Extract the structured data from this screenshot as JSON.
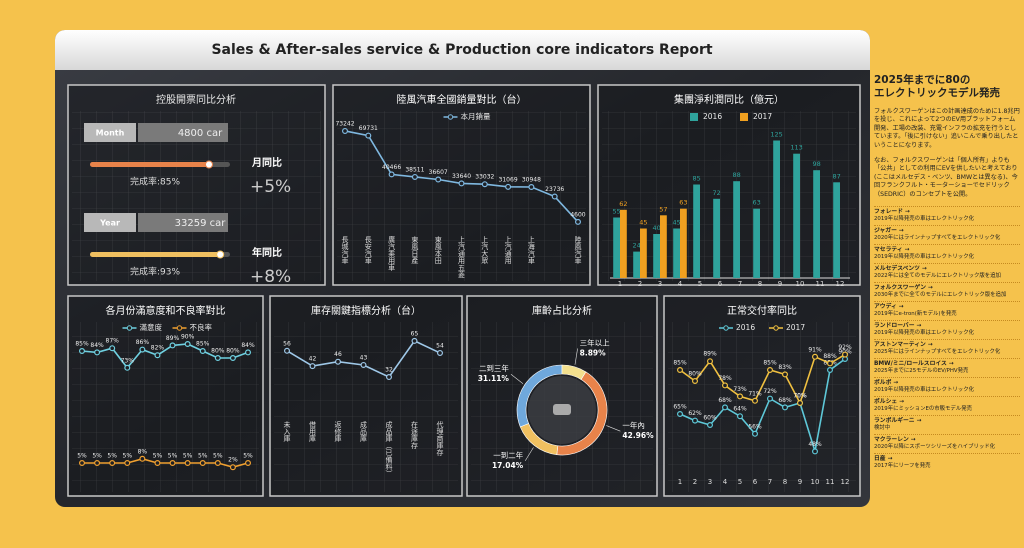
{
  "header": {
    "title": "Sales & After-sales service & Production core indicators Report"
  },
  "kpi": {
    "title": "控股開票同比分析",
    "rows": [
      {
        "period": "Month",
        "amount": "4800 car",
        "rate": 85,
        "rate_label": "完成率:85%",
        "change_label": "月同比",
        "change": "+5%",
        "color": "#e8834a"
      },
      {
        "period": "Year",
        "amount": "33259 car",
        "rate": 93,
        "rate_label": "完成率:93%",
        "change_label": "年同比",
        "change": "+8%",
        "color": "#f0c060"
      }
    ]
  },
  "chart_data": [
    {
      "type": "line",
      "title": "陸風汽車全國銷量對比（台）",
      "categories": [
        "長城汽車",
        "長安汽車",
        "廣汽乘用車",
        "東風日產",
        "東風本田",
        "上汽通用五菱",
        "上汽大眾",
        "上汽通用",
        "上海汽車",
        null,
        "陸風汽車"
      ],
      "series": [
        {
          "name": "本月銷量",
          "color": "#7fb8e0",
          "values": [
            73242,
            69731,
            40466,
            38511,
            36607,
            33640,
            33032,
            31069,
            30948,
            23736,
            4600
          ]
        }
      ],
      "ylim": [
        0,
        80000
      ]
    },
    {
      "type": "bar",
      "title": "集團淨利潤同比（億元）",
      "categories": [
        "1",
        "2",
        "3",
        "4",
        "5",
        "6",
        "7",
        "8",
        "9",
        "10",
        "11",
        "12"
      ],
      "series": [
        {
          "name": "2016",
          "color": "#2fa39c",
          "values": [
            55,
            24,
            40,
            45,
            85,
            72,
            88,
            63,
            125,
            113,
            98,
            87
          ]
        },
        {
          "name": "2017",
          "color": "#f0a020",
          "values": [
            62,
            45,
            57,
            63,
            null,
            null,
            null,
            null,
            null,
            null,
            null,
            null
          ]
        }
      ],
      "ylim": [
        0,
        130
      ]
    },
    {
      "type": "line",
      "title": "各月份滿意度和不良率對比",
      "series": [
        {
          "name": "滿意度",
          "color": "#6fd0e0",
          "values": [
            85,
            84,
            87,
            73,
            86,
            82,
            89,
            90,
            85,
            80,
            80,
            84
          ],
          "value_labels": [
            "85%",
            "84%",
            "87%",
            "73%",
            "86%",
            "82%",
            "89%",
            "90%",
            "85%",
            "80%",
            "80%",
            "84%"
          ]
        },
        {
          "name": "不良率",
          "color": "#f0a030",
          "values": [
            5,
            5,
            5,
            5,
            8,
            5,
            5,
            5,
            5,
            5,
            2,
            5
          ],
          "value_labels": [
            "5%",
            "5%",
            "5%",
            "5%",
            "8%",
            "5%",
            "5%",
            "5%",
            "5%",
            "5%",
            "2%",
            "5%"
          ]
        }
      ],
      "ylim": [
        0,
        100
      ]
    },
    {
      "type": "line",
      "title": "庫存關鍵指標分析（台）",
      "categories": [
        "未入庫",
        "借用庫",
        "返修庫",
        "成品庫",
        "成品庫（已備料）",
        "在途庫存",
        "代理商庫存"
      ],
      "values": [
        56,
        42,
        46,
        43,
        32,
        65,
        54
      ],
      "color": "#9fc8e8",
      "ylim": [
        0,
        75
      ]
    },
    {
      "type": "pie",
      "title": "庫齡占比分析",
      "categories": [
        "一年內",
        "一到二年",
        "二到三年",
        "三年以上"
      ],
      "values": [
        42.96,
        17.04,
        31.11,
        8.89
      ],
      "value_labels": [
        "42.96%",
        "17.04%",
        "31.11%",
        "8.89%"
      ],
      "colors": [
        "#e8834a",
        "#f0c060",
        "#6fa8dc",
        "#f3e08e"
      ]
    },
    {
      "type": "line",
      "title": "正常交付率同比",
      "categories": [
        "1",
        "2",
        "3",
        "4",
        "5",
        "6",
        "7",
        "8",
        "9",
        "10",
        "11",
        "12"
      ],
      "series": [
        {
          "name": "2016",
          "color": "#5ec8d8",
          "values": [
            65,
            62,
            60,
            68,
            64,
            56,
            72,
            68,
            70,
            48,
            85,
            90
          ],
          "value_labels": [
            "65%",
            "62%",
            "60%",
            "68%",
            "64%",
            "56%",
            "72%",
            "68%",
            "70%",
            "48%",
            "85%",
            "90%"
          ]
        },
        {
          "name": "2017",
          "color": "#f0c040",
          "values": [
            85,
            80,
            89,
            78,
            73,
            71,
            85,
            83,
            70,
            91,
            88,
            92
          ],
          "value_labels": [
            "85%",
            "80%",
            "89%",
            "78%",
            "73%",
            "71%",
            "85%",
            "83%",
            "70%",
            "91%",
            "88%",
            "92%"
          ]
        }
      ],
      "ylim": [
        40,
        100
      ]
    }
  ],
  "side": {
    "title": "2025年までに80の\nエレクトリックモデル発売",
    "paragraphs": [
      "フォルクスワーゲンはこの計画達成のために1.8兆円を投じ、これによって2つのEV用プラットフォーム開発、工場の改装、充電インフラの拡充を行うとしています。「後に引けない」追いこんで乗り出したということになります。",
      "なお、フォルクスワーゲンは「個人所有」よりも「公共」としての利用にEVを供したいと考えており(ここはメルセデス・ベンツ、BMWとは異なる)、今回フランクフルト・モーターショーでセドリック（SEDRIC）のコンセプトを公開。"
    ],
    "items": [
      {
        "name": "フォレード →",
        "text": "2019年以降発売の車はエレクトリック化"
      },
      {
        "name": "ジャガー →",
        "text": "2020年にはラインナップすべてをエレクトリック化"
      },
      {
        "name": "マセラティ →",
        "text": "2019年以降発売の車はエレクトリック化"
      },
      {
        "name": "メルセデスベンツ →",
        "text": "2022年には全てのモデルにエレクトリック版を追加"
      },
      {
        "name": "フォルクスワーゲン →",
        "text": "2030年までに全てのモデルにエレクトリック版を追加"
      },
      {
        "name": "アウディ →",
        "text": "2019年にe-tron(新モデル)を発売"
      },
      {
        "name": "ランドローバー →",
        "text": "2019年以降発売の車はエレクトリック化"
      },
      {
        "name": "アストンマーティン →",
        "text": "2025年にはラインナップすべてをエレクトリック化"
      },
      {
        "name": "BMW/ミニ/ロールスロイス →",
        "text": "2025年までに25モデルのEV/PHV発売"
      },
      {
        "name": "ボルボ →",
        "text": "2019年以降発売の車はエレクトリック化"
      },
      {
        "name": "ポルシェ →",
        "text": "2019年にミッションEの市販モデル発売"
      },
      {
        "name": "ランボルギーニ →",
        "text": "検討中"
      },
      {
        "name": "マクラーレン →",
        "text": "2020年以降にスポーツシリーズをハイブリッド化"
      },
      {
        "name": "日産 →",
        "text": "2017年にリーフを発売"
      }
    ]
  }
}
